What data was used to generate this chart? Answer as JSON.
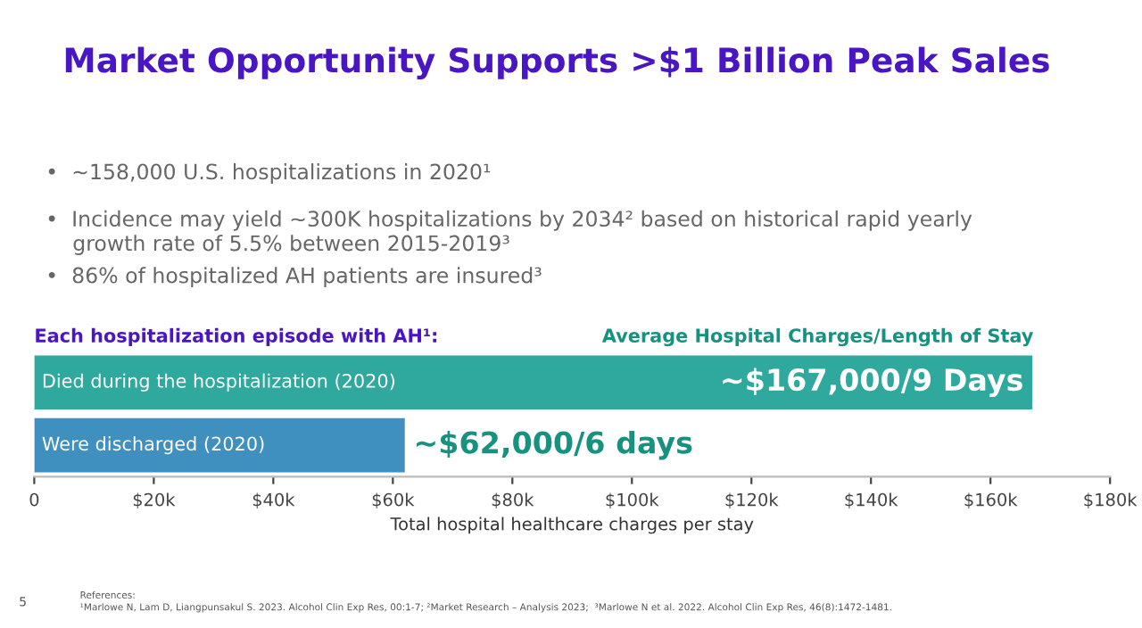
{
  "chart_data": {
    "type": "bar",
    "orientation": "horizontal",
    "title": "Market Opportunity Supports >$1 Billion Peak Sales",
    "subtitle": "Each hospitalization episode with AH¹:",
    "xlabel": "Total hospital healthcare charges per stay",
    "categories": [
      "Died during the hospitalization (2020)",
      "Were discharged (2020)"
    ],
    "values": [
      167000,
      62000
    ],
    "colors": [
      "#2fa99d",
      "#3f8fbf"
    ],
    "value_labels": [
      "~$167,000/9 Days",
      "~$62,000/6 days"
    ],
    "xlim": [
      0,
      180000
    ],
    "xticks": [
      0,
      {
        "value": 20000,
        "label": "$20k"
      },
      {
        "value": 40000,
        "label": "$40k"
      },
      {
        "value": 60000,
        "label": "$60k"
      },
      {
        "value": 80000,
        "label": "$80k"
      },
      {
        "value": 100000,
        "label": "$100k"
      },
      {
        "value": 120000,
        "label": "$120k"
      },
      {
        "value": 140000,
        "label": "$140k"
      },
      {
        "value": 160000,
        "label": "$160k"
      },
      {
        "value": 180000,
        "label": "$180k"
      }
    ],
    "tick_labels": "x",
    "grid": false,
    "legend": false,
    "annotations": [
      "•  ~158,000 U.S. hospitalizations in 2020¹",
      "•  Incidence may yield ~300K hospitalizations by 2034² based on historical rapid yearly\n    growth rate of 5.5% between 2015-2019³",
      "•  86% of hospitalized AH patients are insured³",
      "Average Hospital Charges/Length of Stay",
      "References:\n¹Marlowe N, Lam D, Liangpunsakul S. 2023. Alcohol Clin Exp Res, 00:1-7; ²Market Research – Analysis 2023;  ³Marlowe N et al. 2022. Alcohol Clin Exp Res, 46(8):1472-1481.",
      "5"
    ]
  }
}
